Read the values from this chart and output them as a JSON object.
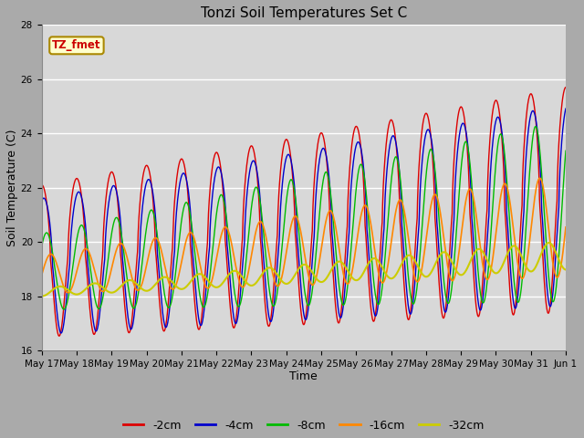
{
  "title": "Tonzi Soil Temperatures Set C",
  "xlabel": "Time",
  "ylabel": "Soil Temperature (C)",
  "ylim": [
    16,
    28
  ],
  "yticks": [
    16,
    18,
    20,
    22,
    24,
    26,
    28
  ],
  "annotation_text": "TZ_fmet",
  "annotation_color": "#cc0000",
  "annotation_bg": "#ffffcc",
  "annotation_border": "#aa8800",
  "series": [
    {
      "label": "-2cm",
      "color": "#dd0000",
      "lw": 1.0
    },
    {
      "label": "-4cm",
      "color": "#0000cc",
      "lw": 1.0
    },
    {
      "label": "-8cm",
      "color": "#00bb00",
      "lw": 1.0
    },
    {
      "label": "-16cm",
      "color": "#ff8800",
      "lw": 1.2
    },
    {
      "label": "-32cm",
      "color": "#cccc00",
      "lw": 1.5
    }
  ],
  "fig_bg": "#aaaaaa",
  "axes_bg": "#d8d8d8",
  "n_points": 1440,
  "n_days": 15,
  "tick_labels": [
    "May 17",
    "May 18",
    "May 19",
    "May 20",
    "May 21",
    "May 22",
    "May 23",
    "May 24",
    "May 25",
    "May 26",
    "May 27",
    "May 28",
    "May 29",
    "May 30",
    "May 31",
    "Jun 1"
  ]
}
